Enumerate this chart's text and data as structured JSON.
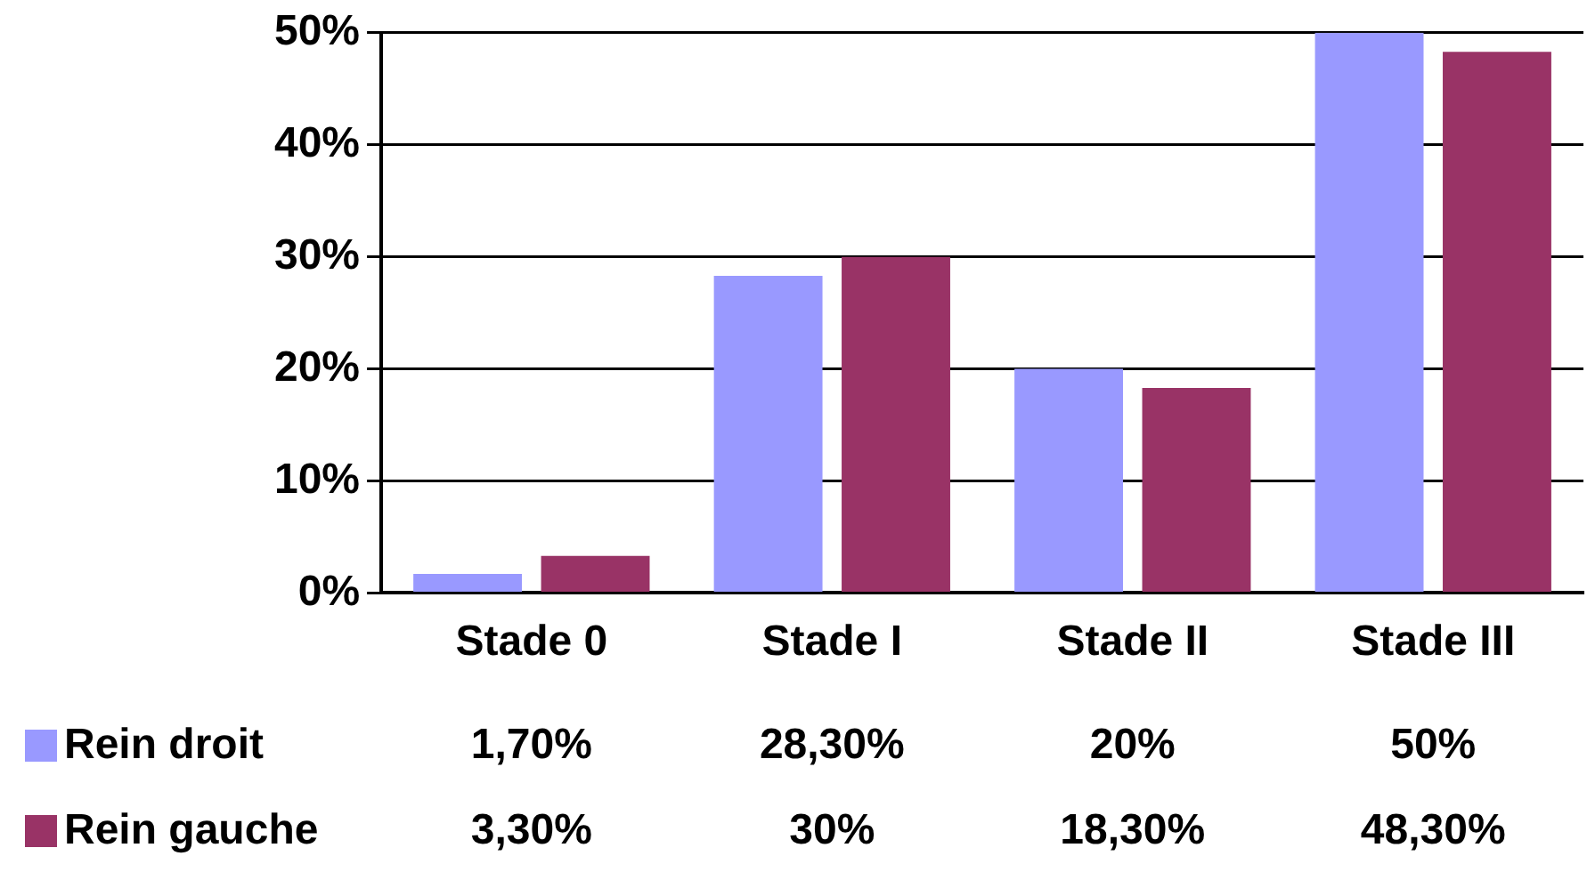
{
  "chart_data": {
    "type": "bar",
    "categories": [
      "Stade 0",
      "Stade I",
      "Stade II",
      "Stade III"
    ],
    "series": [
      {
        "name": "Rein droit",
        "color": "#9999ff",
        "values": [
          1.7,
          28.3,
          20,
          50
        ],
        "value_labels": [
          "1,70%",
          "28,30%",
          "20%",
          "50%"
        ]
      },
      {
        "name": "Rein gauche",
        "color": "#993366",
        "values": [
          3.3,
          30,
          18.3,
          48.3
        ],
        "value_labels": [
          "3,30%",
          "30%",
          "18,30%",
          "48,30%"
        ]
      }
    ],
    "ylim": [
      0,
      50
    ],
    "yticks": [
      {
        "value": 0,
        "label": "0%"
      },
      {
        "value": 10,
        "label": "10%"
      },
      {
        "value": 20,
        "label": "20%"
      },
      {
        "value": 30,
        "label": "30%"
      },
      {
        "value": 40,
        "label": "40%"
      },
      {
        "value": 50,
        "label": "50%"
      }
    ],
    "grid": "y",
    "legend": "bottom left"
  }
}
